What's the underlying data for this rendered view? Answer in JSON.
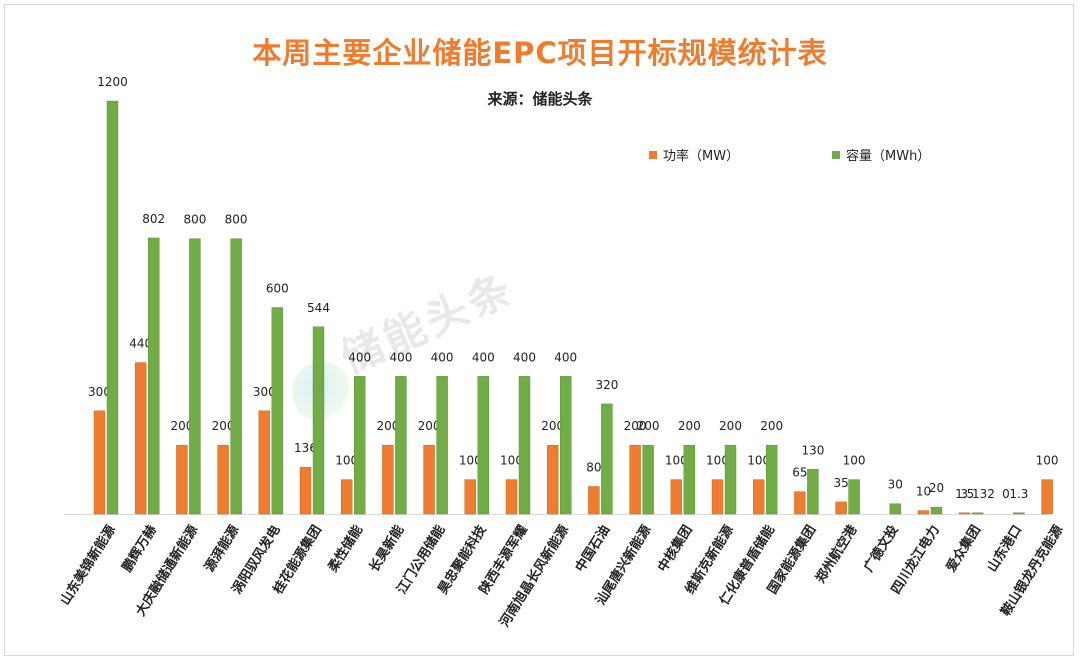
{
  "chart_data": {
    "type": "bar",
    "title": "本周主要企业储能EPC项目开标规模统计表",
    "subtitle": "来源：储能头条",
    "watermark": "储能头条",
    "xlabel": "",
    "ylabel": "",
    "ylim": [
      0,
      1200
    ],
    "grid": false,
    "legend_position": "top-right",
    "categories": [
      "山东美锦新能源",
      "鹏辉万赫",
      "大庆融储通新能源",
      "源湃能源",
      "涡阳驭风发电",
      "桂花能源集团",
      "柔性储能",
      "长昊新能",
      "江门公用储能",
      "昊忠聚能科技",
      "陕西丰源军耀",
      "河南旭晶长风新能源",
      "中国石油",
      "汕尾唐兴新能源",
      "中核集团",
      "维斯克新能源",
      "仁化康普盾储能",
      "国家能源集团",
      "郑州航空港",
      "广德文投",
      "四川龙江电力",
      "爱众集团",
      "山东港口",
      "鞍山银龙丹克能源"
    ],
    "series": [
      {
        "name": "功率（MW）",
        "color": "#ee7d31",
        "values": [
          300,
          440,
          200,
          200,
          300,
          136,
          100,
          200,
          200,
          100,
          100,
          200,
          80,
          200,
          100,
          100,
          100,
          65,
          35,
          0,
          10,
          1.5,
          0,
          100
        ],
        "labels": [
          "300",
          "440",
          "200",
          "200",
          "300",
          "136",
          "100",
          "200",
          "200",
          "100",
          "100",
          "200",
          "80",
          "200",
          "100",
          "100",
          "100",
          "65",
          "35",
          "",
          "10",
          "1.5",
          "0",
          "100"
        ]
      },
      {
        "name": "容量（MWh）",
        "color": "#72ac47",
        "values": [
          1200,
          802,
          800,
          800,
          600,
          544,
          400,
          400,
          400,
          400,
          400,
          400,
          320,
          200,
          200,
          200,
          200,
          130,
          100,
          30,
          20,
          3.132,
          1.3,
          0
        ],
        "labels": [
          "1200",
          "802",
          "800",
          "800",
          "600",
          "544",
          "400",
          "400",
          "400",
          "400",
          "400",
          "400",
          "320",
          "200",
          "200",
          "200",
          "200",
          "130",
          "100",
          "30",
          "20",
          "3.132",
          "1.3",
          ""
        ]
      }
    ]
  }
}
